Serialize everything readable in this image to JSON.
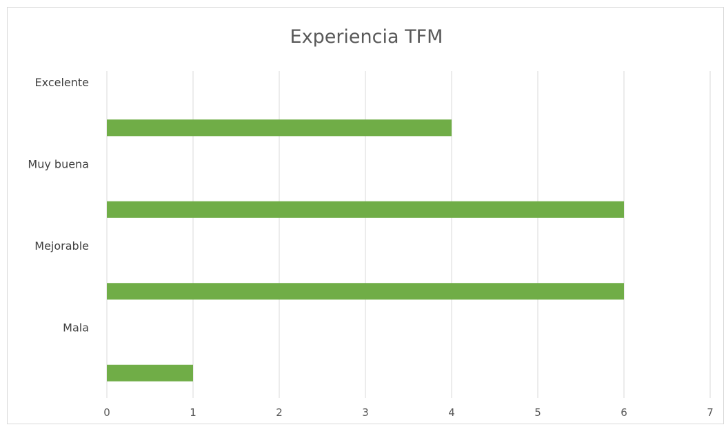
{
  "chart_data": {
    "type": "bar",
    "orientation": "horizontal",
    "title": "Experiencia TFM",
    "categories": [
      "Excelente",
      "Muy buena",
      "Mejorable",
      "Mala"
    ],
    "values": [
      4,
      6,
      6,
      1
    ],
    "xlim": [
      0,
      7
    ],
    "x_ticks": [
      "0",
      "1",
      "2",
      "3",
      "4",
      "5",
      "6",
      "7"
    ],
    "grid": "vertical",
    "bar_color": "#70ad47",
    "grid_color": "#d9d9d9"
  }
}
